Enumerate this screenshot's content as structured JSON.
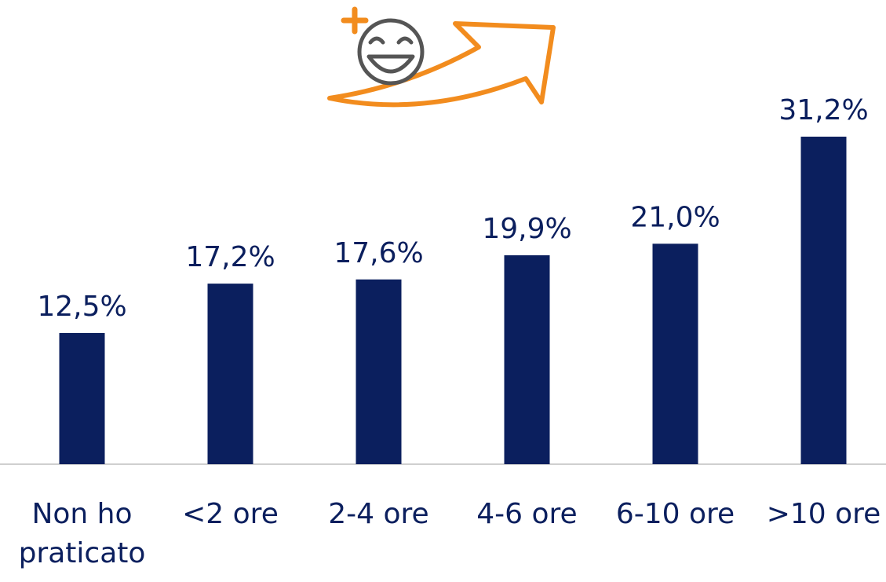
{
  "chart_data": {
    "type": "bar",
    "categories": [
      "Non ho praticato",
      "<2 ore",
      "2-4 ore",
      "4-6 ore",
      "6-10 ore",
      ">10 ore"
    ],
    "values": [
      12.5,
      17.2,
      17.6,
      19.9,
      21.0,
      31.2
    ],
    "value_labels": [
      "12,5%",
      "17,2%",
      "17,6%",
      "19,9%",
      "21,0%",
      "31,2%"
    ],
    "color": "#0b1f5e"
  }
}
